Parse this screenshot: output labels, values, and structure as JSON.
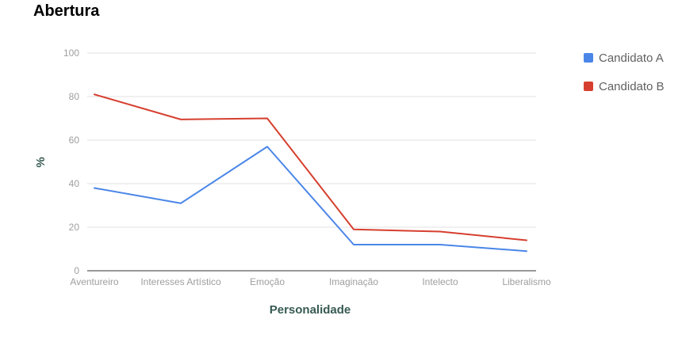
{
  "chart_data": {
    "type": "line",
    "title": "Abertura",
    "xlabel": "Personalidade",
    "ylabel": "%",
    "categories": [
      "Aventureiro",
      "Interesses Artístico",
      "Emoção",
      "Imaginação",
      "Intelecto",
      "Liberalismo"
    ],
    "ylim": [
      0,
      100
    ],
    "yticks": [
      0,
      20,
      40,
      60,
      80,
      100
    ],
    "grid": true,
    "legend_position": "right",
    "series": [
      {
        "name": "Candidato A",
        "color": "#4a86e8",
        "values": [
          38,
          31,
          57,
          12,
          12,
          9
        ]
      },
      {
        "name": "Candidato B",
        "color": "#d63f2f",
        "values": [
          81,
          69.5,
          70,
          19,
          18,
          14
        ]
      }
    ]
  }
}
